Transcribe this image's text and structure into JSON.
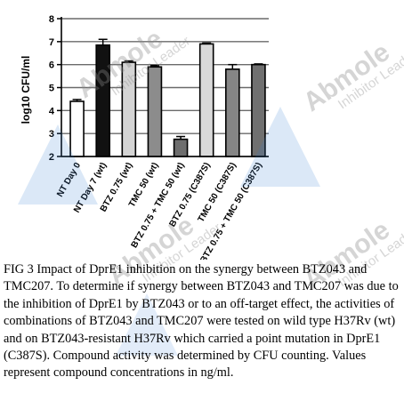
{
  "chart_data": {
    "type": "bar",
    "ylabel": "log10 CFU/ml",
    "ylim": [
      2,
      8
    ],
    "yticks": [
      2,
      3,
      4,
      5,
      6,
      7,
      8
    ],
    "grid": true,
    "categories": [
      "NT Day 0",
      "NT Day 7 (wt)",
      "BTZ 0.75 (wt)",
      "TMC 50 (wt)",
      "BTZ 0.75 + TMC 50 (wt)",
      "BTZ 0.75 (C387S)",
      "TMC 50 (C387S)",
      "BTZ 0.75 + TMC 50 (C387S)"
    ],
    "values": [
      4.4,
      6.85,
      6.1,
      5.9,
      2.75,
      6.9,
      5.8,
      6.0
    ],
    "errors": [
      0.08,
      0.25,
      0.06,
      0.06,
      0.12,
      0.04,
      0.2,
      0.03
    ],
    "bar_colors": [
      "#ffffff",
      "#111111",
      "#d4d4d4",
      "#8c8c8c",
      "#6e6e6e",
      "#d9d9d9",
      "#858585",
      "#707070"
    ]
  },
  "caption": "FIG 3 Impact of DprE1 inhibition on the synergy between BTZ043 and TMC207. To determine if synergy between BTZ043 and TMC207 was due to the inhibition of DprE1 by BTZ043 or to an off-target effect, the activities of combinations of BTZ043 and TMC207 were tested on wild type H37Rv (wt) and on BTZ043-resistant H37Rv which carried a point mutation in DprE1 (C387S). Compound activity was determined by CFU counting. Values represent compound concentrations in ng/ml.",
  "watermark": {
    "brand": "Abmole",
    "tagline": "Inhibitor Leader"
  }
}
